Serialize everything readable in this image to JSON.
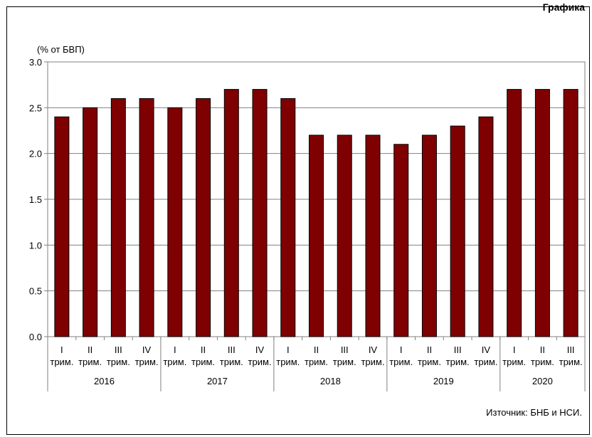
{
  "header": {
    "label": "Графика"
  },
  "chart_data": {
    "type": "bar",
    "ylabel": "(% от БВП)",
    "ylim": [
      0,
      3.0
    ],
    "yticks": [
      "0.0",
      "0.5",
      "1.0",
      "1.5",
      "2.0",
      "2.5",
      "3.0"
    ],
    "grid": true,
    "bar_color": "#7f0000",
    "categories": [
      {
        "quarter": "I",
        "suffix": "трим."
      },
      {
        "quarter": "II",
        "suffix": "трим."
      },
      {
        "quarter": "III",
        "suffix": "трим."
      },
      {
        "quarter": "IV",
        "suffix": "трим."
      },
      {
        "quarter": "I",
        "suffix": "трим."
      },
      {
        "quarter": "II",
        "suffix": "трим."
      },
      {
        "quarter": "III",
        "suffix": "трим."
      },
      {
        "quarter": "IV",
        "suffix": "трим."
      },
      {
        "quarter": "I",
        "suffix": "трим."
      },
      {
        "quarter": "II",
        "suffix": "трим."
      },
      {
        "quarter": "III",
        "suffix": "трим."
      },
      {
        "quarter": "IV",
        "suffix": "трим."
      },
      {
        "quarter": "I",
        "suffix": "трим."
      },
      {
        "quarter": "II",
        "suffix": "трим."
      },
      {
        "quarter": "III",
        "suffix": "трим."
      },
      {
        "quarter": "IV",
        "suffix": "трим."
      },
      {
        "quarter": "I",
        "suffix": "трим."
      },
      {
        "quarter": "II",
        "suffix": "трим."
      },
      {
        "quarter": "III",
        "suffix": "трим."
      }
    ],
    "groups": [
      {
        "label": "2016",
        "count": 4
      },
      {
        "label": "2017",
        "count": 4
      },
      {
        "label": "2018",
        "count": 4
      },
      {
        "label": "2019",
        "count": 4
      },
      {
        "label": "2020",
        "count": 3
      }
    ],
    "values": [
      2.4,
      2.5,
      2.6,
      2.6,
      2.5,
      2.6,
      2.7,
      2.7,
      2.6,
      2.2,
      2.2,
      2.2,
      2.1,
      2.2,
      2.3,
      2.4,
      2.7,
      2.7,
      2.7
    ]
  },
  "source": "Източник:  БНБ и НСИ."
}
